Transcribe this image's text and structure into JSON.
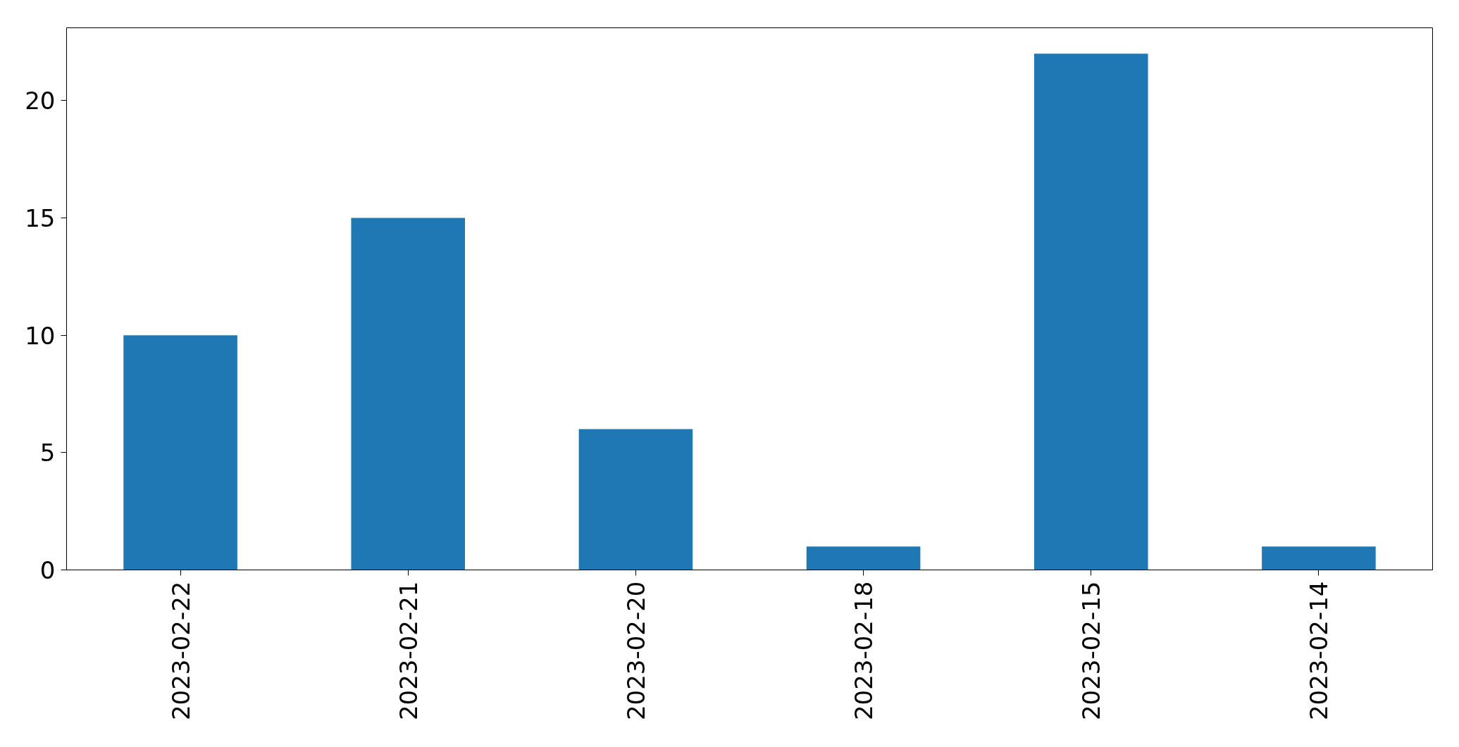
{
  "chart_data": {
    "type": "bar",
    "categories": [
      "2023-02-22",
      "2023-02-21",
      "2023-02-20",
      "2023-02-18",
      "2023-02-15",
      "2023-02-14"
    ],
    "values": [
      10,
      15,
      6,
      1,
      22,
      1
    ],
    "color": "#1f77b4",
    "ylim": [
      0,
      23.1
    ],
    "yticks": [
      0,
      5,
      10,
      15,
      20
    ]
  }
}
